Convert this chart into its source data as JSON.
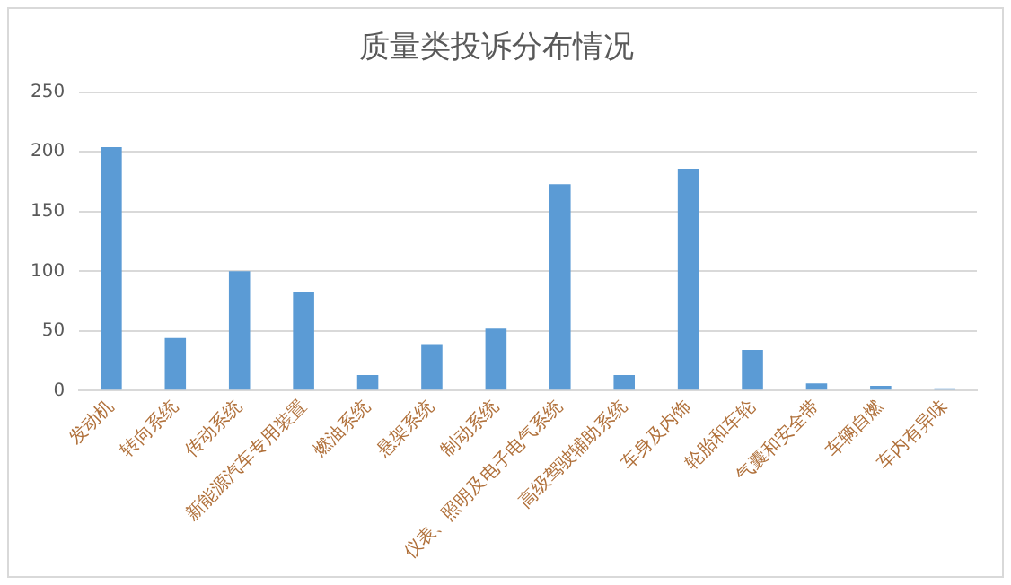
{
  "chart_data": {
    "type": "bar",
    "title": "质量类投诉分布情况",
    "categories": [
      "发动机",
      "转向系统",
      "传动系统",
      "新能源汽车专用装置",
      "燃油系统",
      "悬架系统",
      "制动系统",
      "仪表、照明及电子电气系统",
      "高级驾驶辅助系统",
      "车身及内饰",
      "轮胎和车轮",
      "气囊和安全带",
      "车辆自燃",
      "车内有异味"
    ],
    "values": [
      204,
      44,
      100,
      83,
      13,
      39,
      52,
      173,
      13,
      186,
      34,
      6,
      4,
      2
    ],
    "color": "#5b9bd5",
    "ylim": [
      0,
      250
    ],
    "yticks": [
      0,
      50,
      100,
      150,
      200,
      250
    ],
    "grid": "y",
    "legend": false
  }
}
